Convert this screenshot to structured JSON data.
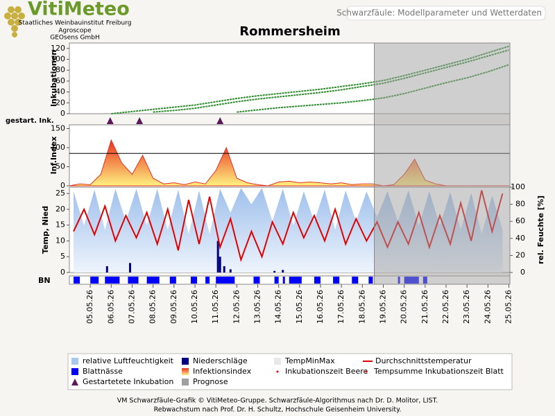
{
  "header": {
    "logo": "VitiMeteo",
    "lines": [
      "Staatliches Weinbauinstitut Freiburg",
      "Agroscope",
      "GEOsens GmbH"
    ],
    "page_title": "Schwarzfäule: Modellparameter und Wetterdaten"
  },
  "title": "Rommersheim",
  "footer": [
    "VM Schwarzfäule-Grafik © VitiMeteo-Gruppe. Schwarzfäule-Algorithmus nach Dr. D. Molitor, LIST.",
    "Rebwachstum nach Prof. Dr. H. Schultz, Hochschule Geisenheim University."
  ],
  "prognosis": {
    "name": "Prognose",
    "start": 18.57,
    "color": "#a0a0a0"
  },
  "legend_extra": [
    {
      "name": "TempMinMax",
      "color": "#e8e8e8"
    },
    {
      "name": "Inkubationszeit Beere",
      "color": "#e00000"
    },
    {
      "name": "Tempsumme Inkubationszeit Blatt",
      "color": "#e00000"
    }
  ],
  "chart_data": [
    {
      "type": "line",
      "ylabel": "Inkubationen",
      "ylim": [
        0,
        130
      ],
      "yticks": [
        0,
        20,
        40,
        60,
        80,
        100,
        120
      ],
      "x": [
        4,
        5,
        6,
        7,
        8,
        9,
        10,
        11,
        12,
        13,
        14,
        15,
        16,
        17,
        18,
        19,
        20,
        21,
        22,
        23,
        24,
        25
      ],
      "series": [
        {
          "color": "#2e8b2e",
          "values": [
            null,
            null,
            0,
            4,
            8,
            12,
            16,
            22,
            28,
            33,
            37,
            41,
            45,
            50,
            55,
            61,
            70,
            80,
            90,
            100,
            112,
            124
          ]
        },
        {
          "color": "#2e8b2e",
          "values": [
            null,
            null,
            null,
            null,
            3,
            6,
            10,
            16,
            22,
            27,
            31,
            35,
            39,
            44,
            50,
            56,
            65,
            75,
            85,
            95,
            106,
            117
          ]
        },
        {
          "color": "#2e8b2e",
          "values": [
            null,
            null,
            null,
            null,
            null,
            null,
            null,
            null,
            3,
            7,
            11,
            14,
            17,
            20,
            24,
            29,
            37,
            47,
            57,
            66,
            77,
            90
          ]
        }
      ]
    },
    {
      "type": "scatter",
      "ylabel": "gestart. Ink.",
      "name": "Gestartetete Inkubation",
      "color": "#5a1a5a",
      "x": [
        5.95,
        7.35,
        11.2
      ]
    },
    {
      "type": "area",
      "ylabel": "Inf.Index",
      "name": "Infektionsindex",
      "color": "#e03020",
      "ylim": [
        0,
        160
      ],
      "yticks": [
        0,
        50,
        100,
        150
      ],
      "threshold": 85,
      "x": [
        4,
        4.5,
        5,
        5.5,
        6,
        6.5,
        7,
        7.5,
        8,
        8.5,
        9,
        9.5,
        10,
        10.5,
        11,
        11.5,
        12,
        12.5,
        13,
        13.5,
        14,
        14.5,
        15,
        15.5,
        16,
        16.5,
        17,
        17.5,
        18,
        18.5,
        19,
        19.5,
        20,
        20.5,
        21,
        21.5,
        22,
        22.5,
        23,
        23.5,
        24,
        24.5,
        25
      ],
      "values": [
        0,
        5,
        3,
        30,
        120,
        60,
        30,
        80,
        20,
        5,
        8,
        3,
        10,
        5,
        40,
        100,
        20,
        8,
        3,
        0,
        10,
        12,
        8,
        10,
        8,
        5,
        8,
        3,
        5,
        5,
        0,
        3,
        30,
        70,
        15,
        5,
        0,
        0,
        0,
        0,
        0,
        0,
        0
      ]
    },
    {
      "type": "combo",
      "ylabel": "Temp, Nied",
      "y2label": "rel. Feuchte [%]",
      "ylim": [
        0,
        27
      ],
      "yticks": [
        0,
        5,
        10,
        15,
        20,
        25
      ],
      "y2lim": [
        0,
        100
      ],
      "y2ticks": [
        0,
        20,
        40,
        60,
        80,
        100
      ],
      "series": [
        {
          "type": "area",
          "name": "relative Luftfeuchtigkeit",
          "axis": "y2",
          "color": "#a9c8ee",
          "x": [
            4.2,
            4.7,
            5.2,
            5.7,
            6.2,
            6.7,
            7.2,
            7.7,
            8.2,
            8.7,
            9.2,
            9.7,
            10.2,
            10.7,
            11.2,
            11.7,
            12.2,
            12.7,
            13.2,
            13.7,
            14.2,
            14.7,
            15.2,
            15.7,
            16.2,
            16.7,
            17.2,
            17.7,
            18.2,
            18.7,
            19.2,
            19.7,
            20.2,
            20.7,
            21.2,
            21.7,
            22.2,
            22.7,
            23.2,
            23.7,
            24.2,
            24.7
          ],
          "values": [
            95,
            55,
            97,
            50,
            98,
            60,
            98,
            55,
            98,
            50,
            97,
            45,
            96,
            45,
            98,
            70,
            99,
            80,
            99,
            60,
            98,
            55,
            95,
            60,
            97,
            50,
            96,
            60,
            95,
            65,
            95,
            60,
            96,
            55,
            95,
            55,
            94,
            50,
            93,
            45,
            90,
            50
          ]
        },
        {
          "type": "bar",
          "name": "Niederschläge",
          "color": "#000080",
          "x": [
            5.8,
            6.9,
            11.1,
            11.2,
            11.4,
            11.7,
            13.8,
            14.2
          ],
          "values": [
            2,
            3,
            10,
            5,
            2,
            1,
            0.5,
            0.8
          ]
        },
        {
          "type": "line",
          "name": "Durchschnittstemperatur",
          "color": "#e00000",
          "x": [
            4.2,
            4.7,
            5.2,
            5.7,
            6.2,
            6.7,
            7.2,
            7.7,
            8.2,
            8.7,
            9.2,
            9.7,
            10.2,
            10.7,
            11.2,
            11.7,
            12.2,
            12.7,
            13.2,
            13.7,
            14.2,
            14.7,
            15.2,
            15.7,
            16.2,
            16.7,
            17.2,
            17.7,
            18.2,
            18.7,
            19.2,
            19.7,
            20.2,
            20.7,
            21.2,
            21.7,
            22.2,
            22.7,
            23.2,
            23.7,
            24.2,
            24.7
          ],
          "values": [
            13,
            20,
            12,
            21,
            10,
            18,
            11,
            19,
            9,
            20,
            7,
            23,
            9,
            24,
            8,
            17,
            4,
            13,
            5,
            16,
            9,
            19,
            11,
            18,
            10,
            20,
            9,
            17,
            10,
            16,
            8,
            16,
            9,
            19,
            8,
            18,
            9,
            22,
            10,
            26,
            13,
            25
          ]
        }
      ]
    },
    {
      "type": "strip",
      "ylabel": "BN",
      "name": "Blattnässe",
      "color": "#0000ff",
      "xlim": [
        4,
        25.05
      ],
      "intervals": [
        [
          4.2,
          4.5
        ],
        [
          5.0,
          5.4
        ],
        [
          5.7,
          6.4
        ],
        [
          6.8,
          7.3
        ],
        [
          7.7,
          8.3
        ],
        [
          8.8,
          9.1
        ],
        [
          9.8,
          10.1
        ],
        [
          10.5,
          10.7
        ],
        [
          11.0,
          11.9
        ],
        [
          12.8,
          13.1
        ],
        [
          13.8,
          14.0
        ],
        [
          14.2,
          14.3
        ],
        [
          14.5,
          15.1
        ],
        [
          15.7,
          16.0
        ],
        [
          16.6,
          16.9
        ],
        [
          17.5,
          17.8
        ],
        [
          18.3,
          18.5
        ],
        [
          19.7,
          19.8
        ],
        [
          20.0,
          20.7
        ],
        [
          20.9,
          21.1
        ]
      ],
      "xticks": [
        {
          "value": 5,
          "label": "05.05.26"
        },
        {
          "value": 6,
          "label": "06.05.26"
        },
        {
          "value": 7,
          "label": "07.05.26"
        },
        {
          "value": 8,
          "label": "08.05.26"
        },
        {
          "value": 9,
          "label": "09.05.26"
        },
        {
          "value": 10,
          "label": "10.05.26"
        },
        {
          "value": 11,
          "label": "11.05.26"
        },
        {
          "value": 12,
          "label": "12.05.26"
        },
        {
          "value": 13,
          "label": "13.05.26"
        },
        {
          "value": 14,
          "label": "14.05.26"
        },
        {
          "value": 15,
          "label": "15.05.26"
        },
        {
          "value": 16,
          "label": "16.05.26"
        },
        {
          "value": 17,
          "label": "17.05.26"
        },
        {
          "value": 18,
          "label": "18.05.26"
        },
        {
          "value": 19,
          "label": "19.05.26"
        },
        {
          "value": 20,
          "label": "20.05.26"
        },
        {
          "value": 21,
          "label": "21.05.26"
        },
        {
          "value": 22,
          "label": "22.05.26"
        },
        {
          "value": 23,
          "label": "23.05.26"
        },
        {
          "value": 24,
          "label": "24.05.26"
        },
        {
          "value": 25,
          "label": "25.05.26"
        }
      ]
    }
  ]
}
